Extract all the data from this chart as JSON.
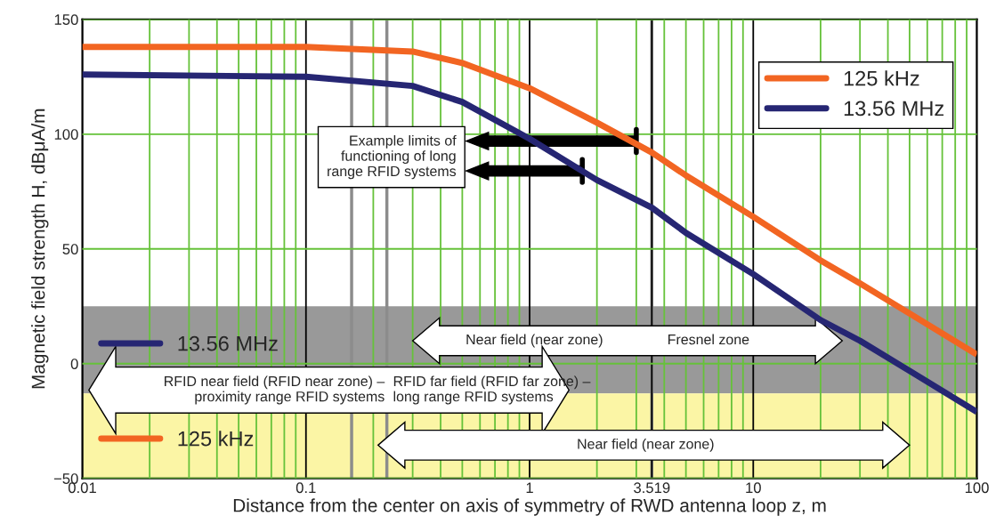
{
  "chart_data": {
    "type": "line",
    "xlabel": "Distance from the center on axis of symmetry of RWD antenna loop z, m",
    "ylabel": "Magnetic field strength H, dBμA/m",
    "x": [
      0.01,
      0.1,
      0.3,
      0.5,
      1,
      2,
      3.519,
      5,
      10,
      20,
      30,
      100
    ],
    "series": [
      {
        "name": "125 kHz",
        "color": "#f26522",
        "values": [
          138,
          138,
          136,
          131,
          120,
          105,
          92,
          82,
          64,
          45,
          35,
          4
        ]
      },
      {
        "name": "13.56 MHz",
        "color": "#262673",
        "values": [
          126,
          125,
          121,
          114,
          98,
          80,
          68,
          57,
          39,
          19,
          10,
          -21
        ]
      }
    ],
    "log": "x",
    "xlim": [
      0.01,
      100
    ],
    "ylim": [
      -50,
      150
    ],
    "xticks": [
      0.01,
      0.1,
      1,
      3.519,
      10,
      100
    ],
    "yticks": [
      -50,
      0,
      50,
      100,
      150
    ],
    "grid": true,
    "legend": "top right",
    "bands": [
      {
        "axis": "y",
        "from": -13,
        "to": 25,
        "color": "#999999"
      },
      {
        "axis": "y",
        "from": -50,
        "to": -13,
        "color": "#fbf5a5"
      }
    ],
    "ref_lines": [
      {
        "axis": "x",
        "value": 0.16,
        "color": "#8c8c8c"
      },
      {
        "axis": "x",
        "value": 0.23,
        "color": "#8c8c8c"
      },
      {
        "axis": "x",
        "value": 3.519,
        "color": "#8c8c8c"
      }
    ],
    "annotations": [
      "Example limits of\nfunctioning of long\nrange RFID systems",
      "Near field (near zone)",
      "Fresnel zone",
      "RFID near field (RFID near zone) –\nproximity range RFID systems",
      "RFID far field (RFID far zone) –\nlong range RFID systems",
      "Near field (near zone)"
    ]
  }
}
